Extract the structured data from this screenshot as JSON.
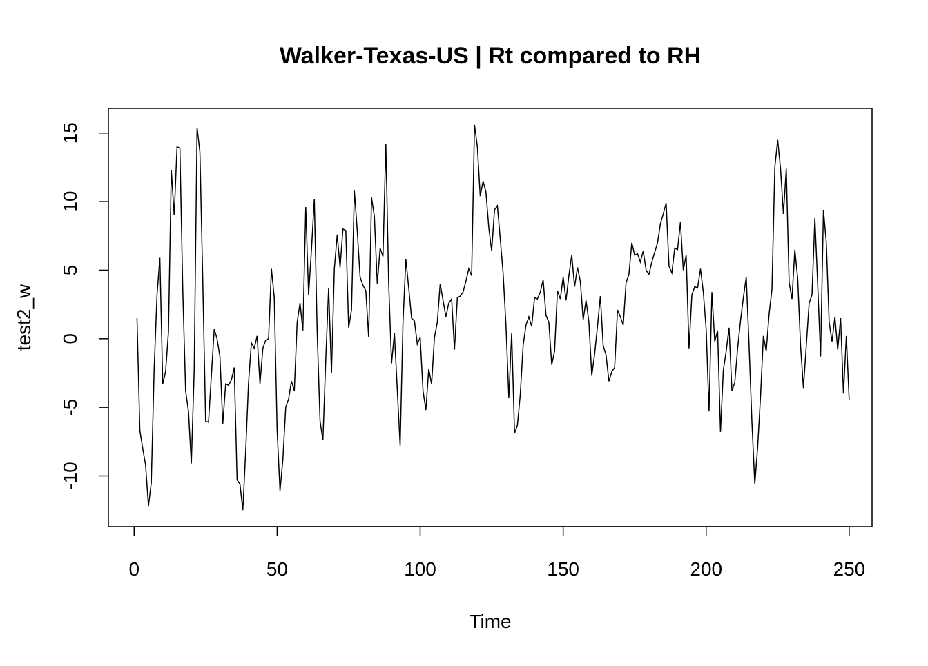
{
  "chart_data": {
    "type": "line",
    "title": "Walker-Texas-US | Rt compared to RH",
    "xlabel": "Time",
    "ylabel": "test2_w",
    "xlim": [
      -9,
      258
    ],
    "ylim": [
      -13.7,
      16.8
    ],
    "x_ticks": [
      "0",
      "50",
      "100",
      "150",
      "200",
      "250"
    ],
    "y_ticks": [
      "-10",
      "-5",
      "0",
      "5",
      "10",
      "15"
    ],
    "grid": false,
    "line_color": "#000000",
    "series": [
      {
        "x_start": 1,
        "x_step": 1,
        "values": [
          1.5,
          -6.7,
          -8.0,
          -9.2,
          -12.2,
          -10.5,
          -2.2,
          3.2,
          5.9,
          -3.3,
          -2.4,
          0.5,
          12.3,
          9.0,
          14.0,
          13.9,
          3.6,
          -3.8,
          -5.3,
          -9.1,
          -2.3,
          15.4,
          13.6,
          4.2,
          -6.0,
          -6.1,
          -2.7,
          0.7,
          0.0,
          -1.3,
          -6.2,
          -3.3,
          -3.4,
          -3.0,
          -2.1,
          -10.3,
          -10.6,
          -12.5,
          -8.2,
          -3.2,
          -0.3,
          -0.7,
          0.2,
          -3.3,
          -0.7,
          -0.1,
          0.0,
          5.1,
          3.0,
          -6.7,
          -11.1,
          -8.8,
          -5.0,
          -4.4,
          -3.1,
          -3.8,
          1.2,
          2.6,
          0.6,
          9.6,
          3.2,
          6.5,
          10.2,
          0.5,
          -6.0,
          -7.4,
          -1.5,
          3.7,
          -2.5,
          5.1,
          7.6,
          5.2,
          8.0,
          7.9,
          0.8,
          2.1,
          10.8,
          7.9,
          4.5,
          3.9,
          3.5,
          0.1,
          10.3,
          8.9,
          4.0,
          6.6,
          6.0,
          14.2,
          4.0,
          -1.8,
          0.4,
          -3.7,
          -7.8,
          1.2,
          5.8,
          3.7,
          1.5,
          1.3,
          -0.4,
          0.1,
          -3.8,
          -5.2,
          -2.2,
          -3.3,
          0.1,
          1.2,
          4.0,
          2.8,
          1.6,
          2.6,
          2.9,
          -0.8,
          3.0,
          3.1,
          3.4,
          4.2,
          5.1,
          4.6,
          15.6,
          14.0,
          10.4,
          11.5,
          10.7,
          8.1,
          6.4,
          9.4,
          9.7,
          7.3,
          4.8,
          1.0,
          -4.3,
          0.4,
          -6.9,
          -6.3,
          -4.1,
          -0.5,
          1.0,
          1.6,
          0.9,
          3.0,
          2.9,
          3.4,
          4.3,
          1.7,
          1.2,
          -1.9,
          -0.9,
          3.5,
          2.9,
          4.5,
          2.8,
          4.6,
          6.1,
          3.8,
          5.2,
          4.2,
          1.4,
          2.8,
          1.2,
          -2.7,
          -1.1,
          0.9,
          3.1,
          -0.5,
          -1.2,
          -3.1,
          -2.4,
          -2.1,
          2.1,
          1.6,
          1.0,
          4.1,
          4.7,
          7.0,
          6.1,
          6.2,
          5.6,
          6.4,
          5.0,
          4.7,
          5.6,
          6.3,
          7.0,
          8.4,
          9.1,
          9.9,
          5.3,
          4.8,
          6.6,
          6.5,
          8.5,
          5.0,
          6.1,
          -0.7,
          3.2,
          3.8,
          3.7,
          5.1,
          3.4,
          0.7,
          -5.3,
          3.4,
          -0.2,
          0.6,
          -6.8,
          -2.3,
          -0.9,
          0.8,
          -3.8,
          -3.2,
          -0.7,
          1.3,
          3.0,
          4.5,
          -0.5,
          -6.1,
          -10.6,
          -7.9,
          -4.2,
          0.2,
          -0.9,
          1.8,
          3.6,
          12.5,
          14.5,
          12.4,
          9.1,
          12.4,
          4.1,
          2.9,
          6.5,
          4.4,
          -0.5,
          -3.6,
          -0.5,
          2.6,
          3.2,
          8.8,
          3.9,
          -1.3,
          9.4,
          7.0,
          1.2,
          -0.2,
          1.6,
          -0.8,
          1.5,
          -4.0,
          0.2,
          -4.5
        ]
      }
    ]
  }
}
